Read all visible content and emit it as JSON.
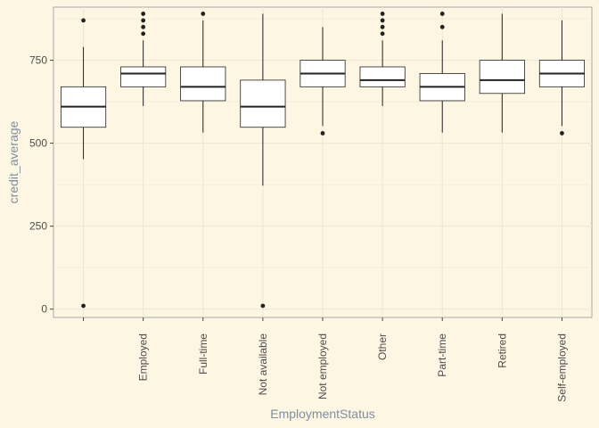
{
  "chart_data": {
    "type": "boxplot",
    "xlabel": "EmploymentStatus",
    "ylabel": "credit_average",
    "ylim": [
      -25,
      910
    ],
    "yticks": [
      0,
      250,
      500,
      750
    ],
    "grid": true,
    "colors": {
      "background": "#fdf6e3",
      "grid": "#ece6d4",
      "box_fill": "#ffffff",
      "stroke": "#222222",
      "outlier": "#222222"
    },
    "categories": [
      "",
      "Employed",
      "Full-time",
      "Not available",
      "Not employed",
      "Other",
      "Part-time",
      "Retired",
      "Self-employed"
    ],
    "boxes": [
      {
        "category": "",
        "min": 452,
        "q1": 548,
        "median": 610,
        "q3": 670,
        "max": 790,
        "outliers": [
          10,
          870
        ]
      },
      {
        "category": "Employed",
        "min": 612,
        "q1": 670,
        "median": 710,
        "q3": 730,
        "max": 810,
        "outliers": [
          830,
          850,
          870,
          890
        ]
      },
      {
        "category": "Full-time",
        "min": 532,
        "q1": 628,
        "median": 670,
        "q3": 730,
        "max": 870,
        "outliers": [
          890
        ]
      },
      {
        "category": "Not available",
        "min": 372,
        "q1": 548,
        "median": 610,
        "q3": 690,
        "max": 890,
        "outliers": [
          10
        ]
      },
      {
        "category": "Not employed",
        "min": 552,
        "q1": 670,
        "median": 710,
        "q3": 750,
        "max": 850,
        "outliers": [
          530
        ]
      },
      {
        "category": "Other",
        "min": 612,
        "q1": 670,
        "median": 690,
        "q3": 730,
        "max": 810,
        "outliers": [
          830,
          850,
          870,
          890
        ]
      },
      {
        "category": "Part-time",
        "min": 532,
        "q1": 628,
        "median": 670,
        "q3": 710,
        "max": 810,
        "outliers": [
          850,
          890
        ]
      },
      {
        "category": "Retired",
        "min": 532,
        "q1": 650,
        "median": 690,
        "q3": 750,
        "max": 890,
        "outliers": []
      },
      {
        "category": "Self-employed",
        "min": 552,
        "q1": 670,
        "median": 710,
        "q3": 750,
        "max": 870,
        "outliers": [
          530
        ]
      }
    ]
  }
}
